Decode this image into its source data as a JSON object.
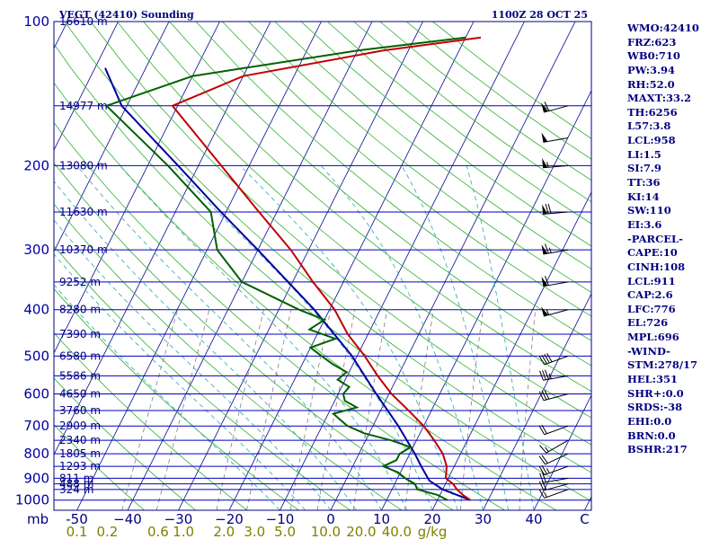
{
  "header": {
    "station": "VEGT (42410) Sounding",
    "time": "1100Z 28 OCT 25"
  },
  "indices": [
    "WMO:42410",
    "FRZ:623",
    "WB0:710",
    "PW:3.94",
    "RH:52.0",
    "MAXT:33.2",
    "TH:6256",
    "L57:3.8",
    "LCL:958",
    "LI:1.5",
    "SI:7.9",
    "TT:36",
    "KI:14",
    "SW:110",
    "EI:3.6",
    "-PARCEL-",
    "CAPE:10",
    "CINH:108",
    "LCL:911",
    "CAP:2.6",
    "LFC:776",
    "EL:726",
    "MPL:696",
    "-WIND-",
    "STM:278/17",
    "HEL:351",
    "SHR+:0.0",
    "SRDS:-38",
    "EHI:0.0",
    "BRN:0.0",
    "BSHR:217"
  ],
  "colors": {
    "frame": "#000080",
    "isobar": "#0000c0",
    "isotherm": "#000090",
    "dry_adiabat": "#30b030",
    "moist_adiabat": "#40b0b0",
    "mixing_ratio": "#808080",
    "temperature": "#c00000",
    "dewpoint": "#006000",
    "parcel": "#0000a0",
    "wind": "#000000",
    "mixing_label": "#808000"
  },
  "chart_data": {
    "type": "skew-t",
    "x_unit": "C",
    "y_unit": "mb",
    "mixing_ratio_unit": "g/kg",
    "pressure_labels": [
      "100",
      "200",
      "300",
      "400",
      "500",
      "600",
      "700",
      "800",
      "900",
      "1000"
    ],
    "pressure_label_values": [
      100,
      200,
      300,
      400,
      500,
      600,
      700,
      800,
      900,
      1000
    ],
    "isobars": [
      100,
      150,
      200,
      250,
      300,
      350,
      400,
      450,
      500,
      550,
      600,
      650,
      700,
      750,
      800,
      850,
      900,
      925,
      950,
      1000
    ],
    "height_labels": [
      {
        "p": 100,
        "text": "16610 m"
      },
      {
        "p": 150,
        "text": "14977 m"
      },
      {
        "p": 200,
        "text": "13080 m"
      },
      {
        "p": 250,
        "text": "11630 m"
      },
      {
        "p": 300,
        "text": "10370 m"
      },
      {
        "p": 350,
        "text": "9252 m"
      },
      {
        "p": 400,
        "text": "8280 m"
      },
      {
        "p": 450,
        "text": "7390 m"
      },
      {
        "p": 500,
        "text": "6580 m"
      },
      {
        "p": 550,
        "text": "5586 m"
      },
      {
        "p": 600,
        "text": "4650 m"
      },
      {
        "p": 650,
        "text": "3760 m"
      },
      {
        "p": 700,
        "text": "2909 m"
      },
      {
        "p": 750,
        "text": "2340 m"
      },
      {
        "p": 800,
        "text": "1805 m"
      },
      {
        "p": 850,
        "text": "1293 m"
      },
      {
        "p": 900,
        "text": "811 m"
      },
      {
        "p": 925,
        "text": "488 m"
      },
      {
        "p": 950,
        "text": "324 m"
      }
    ],
    "temp_axis_prefix": "mb",
    "temp_labels": [
      {
        "v": -50,
        "text": "-50"
      },
      {
        "v": -40,
        "text": "−40"
      },
      {
        "v": -30,
        "text": "−30"
      },
      {
        "v": -20,
        "text": "−20"
      },
      {
        "v": -10,
        "text": "−10"
      },
      {
        "v": 0,
        "text": "0"
      },
      {
        "v": 10,
        "text": "10"
      },
      {
        "v": 20,
        "text": "20"
      },
      {
        "v": 30,
        "text": "30"
      },
      {
        "v": 40,
        "text": "40"
      },
      {
        "v": 50,
        "text": "C"
      }
    ],
    "mixing_labels": [
      {
        "t": -50,
        "text": "0.1"
      },
      {
        "t": -44,
        "text": "0.2"
      },
      {
        "t": -34,
        "text": "0.6"
      },
      {
        "t": -29,
        "text": "1.0"
      },
      {
        "t": -21,
        "text": "2.0"
      },
      {
        "t": -15,
        "text": "3.0"
      },
      {
        "t": -9,
        "text": "5.0"
      },
      {
        "t": -1,
        "text": "10.0"
      },
      {
        "t": 6,
        "text": "20.0"
      },
      {
        "t": 13,
        "text": "40.0"
      },
      {
        "t": 20,
        "text": "g/kg"
      }
    ],
    "mixing_lines": [
      0.1,
      0.2,
      0.6,
      1.0,
      2.0,
      3.0,
      5.0,
      10.0,
      20.0,
      40.0
    ],
    "temperature": [
      {
        "p": 1000,
        "t": 26.5
      },
      {
        "p": 975,
        "t": 24.5
      },
      {
        "p": 950,
        "t": 22.8
      },
      {
        "p": 925,
        "t": 21.5
      },
      {
        "p": 900,
        "t": 19.5
      },
      {
        "p": 850,
        "t": 18.5
      },
      {
        "p": 800,
        "t": 16.5
      },
      {
        "p": 750,
        "t": 13.5
      },
      {
        "p": 700,
        "t": 10.0
      },
      {
        "p": 650,
        "t": 5.5
      },
      {
        "p": 600,
        "t": 0.5
      },
      {
        "p": 550,
        "t": -4.0
      },
      {
        "p": 500,
        "t": -8.5
      },
      {
        "p": 450,
        "t": -14.0
      },
      {
        "p": 400,
        "t": -19.0
      },
      {
        "p": 350,
        "t": -26.0
      },
      {
        "p": 300,
        "t": -33.5
      },
      {
        "p": 250,
        "t": -43.5
      },
      {
        "p": 200,
        "t": -55.5
      },
      {
        "p": 150,
        "t": -71.0
      },
      {
        "p": 130,
        "t": -60.0
      },
      {
        "p": 115,
        "t": -35.0
      },
      {
        "p": 108,
        "t": -17.0
      }
    ],
    "dewpoint": [
      {
        "p": 1000,
        "t": 22.0
      },
      {
        "p": 975,
        "t": 19.5
      },
      {
        "p": 950,
        "t": 15.0
      },
      {
        "p": 925,
        "t": 14.0
      },
      {
        "p": 900,
        "t": 11.5
      },
      {
        "p": 875,
        "t": 9.5
      },
      {
        "p": 850,
        "t": 6.0
      },
      {
        "p": 825,
        "t": 8.0
      },
      {
        "p": 800,
        "t": 8.0
      },
      {
        "p": 775,
        "t": 9.5
      },
      {
        "p": 750,
        "t": 5.0
      },
      {
        "p": 725,
        "t": -1.0
      },
      {
        "p": 700,
        "t": -5.0
      },
      {
        "p": 660,
        "t": -9.0
      },
      {
        "p": 640,
        "t": -5.0
      },
      {
        "p": 620,
        "t": -8.0
      },
      {
        "p": 600,
        "t": -9.0
      },
      {
        "p": 580,
        "t": -8.5
      },
      {
        "p": 560,
        "t": -11.5
      },
      {
        "p": 540,
        "t": -10.5
      },
      {
        "p": 520,
        "t": -14.0
      },
      {
        "p": 500,
        "t": -17.0
      },
      {
        "p": 480,
        "t": -20.0
      },
      {
        "p": 460,
        "t": -16.0
      },
      {
        "p": 440,
        "t": -22.0
      },
      {
        "p": 420,
        "t": -20.0
      },
      {
        "p": 400,
        "t": -26.0
      },
      {
        "p": 350,
        "t": -40.0
      },
      {
        "p": 300,
        "t": -48.0
      },
      {
        "p": 250,
        "t": -53.0
      },
      {
        "p": 200,
        "t": -66.0
      },
      {
        "p": 150,
        "t": -84.0
      },
      {
        "p": 130,
        "t": -70.0
      },
      {
        "p": 115,
        "t": -40.0
      },
      {
        "p": 108,
        "t": -20.0
      }
    ],
    "parcel": [
      {
        "p": 1000,
        "t": 26.5
      },
      {
        "p": 950,
        "t": 20.0
      },
      {
        "p": 911,
        "t": 16.5
      },
      {
        "p": 850,
        "t": 13.5
      },
      {
        "p": 800,
        "t": 11.0
      },
      {
        "p": 700,
        "t": 5.0
      },
      {
        "p": 600,
        "t": -2.5
      },
      {
        "p": 500,
        "t": -11.0
      },
      {
        "p": 400,
        "t": -23.0
      },
      {
        "p": 300,
        "t": -40.0
      },
      {
        "p": 250,
        "t": -51.0
      },
      {
        "p": 200,
        "t": -64.0
      },
      {
        "p": 150,
        "t": -81.0
      },
      {
        "p": 125,
        "t": -88.0
      }
    ],
    "winds": [
      {
        "p": 950,
        "dir": 250,
        "kt": 15
      },
      {
        "p": 925,
        "dir": 255,
        "kt": 20
      },
      {
        "p": 900,
        "dir": 260,
        "kt": 20
      },
      {
        "p": 850,
        "dir": 250,
        "kt": 25
      },
      {
        "p": 800,
        "dir": 245,
        "kt": 20
      },
      {
        "p": 750,
        "dir": 240,
        "kt": 15
      },
      {
        "p": 700,
        "dir": 250,
        "kt": 20
      },
      {
        "p": 600,
        "dir": 255,
        "kt": 30
      },
      {
        "p": 550,
        "dir": 260,
        "kt": 35
      },
      {
        "p": 500,
        "dir": 250,
        "kt": 40
      },
      {
        "p": 400,
        "dir": 255,
        "kt": 55
      },
      {
        "p": 350,
        "dir": 260,
        "kt": 60
      },
      {
        "p": 300,
        "dir": 260,
        "kt": 65
      },
      {
        "p": 250,
        "dir": 265,
        "kt": 70
      },
      {
        "p": 200,
        "dir": 265,
        "kt": 55
      },
      {
        "p": 175,
        "dir": 260,
        "kt": 50
      },
      {
        "p": 150,
        "dir": 255,
        "kt": 60
      }
    ]
  }
}
